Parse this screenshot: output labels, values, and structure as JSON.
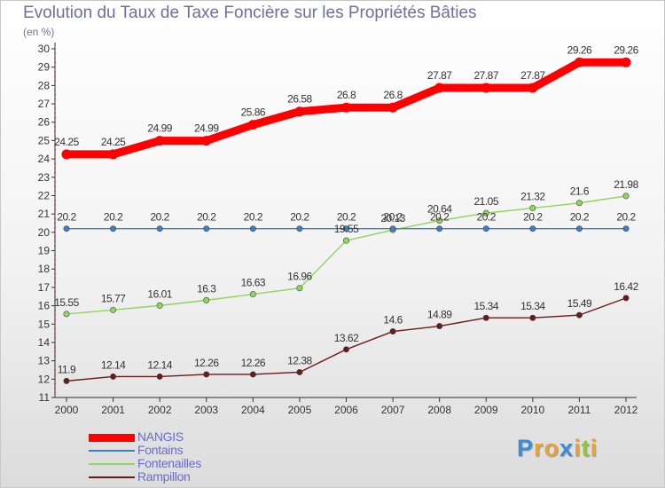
{
  "chart_data": {
    "type": "line",
    "title": "Evolution du Taux de Taxe Foncière sur les Propriétés Bâties",
    "subtitle": "(en %)",
    "x": [
      "2000",
      "2001",
      "2002",
      "2003",
      "2004",
      "2005",
      "2006",
      "2007",
      "2008",
      "2009",
      "2010",
      "2011",
      "2012"
    ],
    "ylim": [
      11,
      30
    ],
    "yticks": [
      11,
      12,
      13,
      14,
      15,
      16,
      17,
      18,
      19,
      20,
      21,
      22,
      23,
      24,
      25,
      26,
      27,
      28,
      29,
      30
    ],
    "grid": false,
    "legend_position": "bottom-left",
    "series": [
      {
        "name": "NANGIS",
        "color": "#ff0000",
        "values": [
          24.25,
          24.25,
          24.99,
          24.99,
          25.86,
          26.58,
          26.8,
          26.8,
          27.87,
          27.87,
          27.87,
          29.26,
          29.26
        ],
        "labels": [
          "24.25",
          "24.25",
          "24.99",
          "24.99",
          "25.86",
          "26.58",
          "26.8",
          "26.8",
          "27.87",
          "27.87",
          "27.87",
          "29.26",
          "29.26"
        ]
      },
      {
        "name": "Fontains",
        "color": "#3a7ec8",
        "values": [
          20.2,
          20.2,
          20.2,
          20.2,
          20.2,
          20.2,
          20.2,
          20.2,
          20.2,
          20.2,
          20.2,
          20.2,
          20.2
        ],
        "labels": [
          "20.2",
          "20.2",
          "20.2",
          "20.2",
          "20.2",
          "20.2",
          "20.2",
          "20.2",
          "20.2",
          "20.2",
          "20.2",
          "20.2",
          "20.2"
        ]
      },
      {
        "name": "Fontenailles",
        "color": "#8fd65a",
        "values": [
          15.55,
          15.77,
          16.01,
          16.3,
          16.63,
          16.96,
          19.55,
          20.13,
          20.64,
          21.05,
          21.32,
          21.6,
          21.98
        ],
        "labels": [
          "15.55",
          "15.77",
          "16.01",
          "16.3",
          "16.63",
          "16.96",
          "19.55",
          "20.13",
          "20.64",
          "21.05",
          "21.32",
          "21.6",
          "21.98"
        ]
      },
      {
        "name": "Rampillon",
        "color": "#6b1a1a",
        "values": [
          11.9,
          12.14,
          12.14,
          12.26,
          12.26,
          12.38,
          13.62,
          14.6,
          14.89,
          15.34,
          15.34,
          15.49,
          16.42
        ],
        "labels": [
          "11.9",
          "12.14",
          "12.14",
          "12.26",
          "12.26",
          "12.38",
          "13.62",
          "14.6",
          "14.89",
          "15.34",
          "15.34",
          "15.49",
          "16.42"
        ]
      }
    ]
  },
  "brand": {
    "letters": [
      "P",
      "r",
      "o",
      "x",
      "i",
      "t",
      "i"
    ],
    "colors": [
      "#3b8ed6",
      "#e8a23a",
      "#e8a23a",
      "#3b8ed6",
      "#e8a23a",
      "#8cc63f",
      "#e8a23a"
    ]
  }
}
